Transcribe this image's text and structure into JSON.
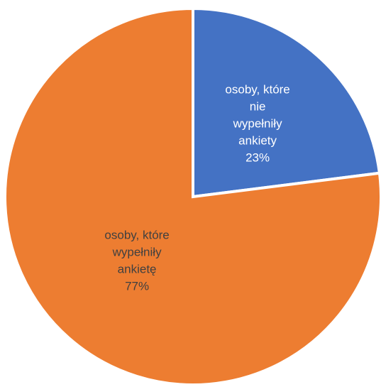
{
  "chart_data": {
    "type": "pie",
    "title": "",
    "legend": "none",
    "start_angle_deg": 0,
    "direction": "clockwise",
    "slices": [
      {
        "label_lines": [
          "osoby, które",
          "nie",
          "wypełniły",
          "ankiety"
        ],
        "value": 23,
        "value_label": "23%",
        "color": "#4472C4",
        "label_color": "#ffffff"
      },
      {
        "label_lines": [
          "osoby, które",
          "wypełniły",
          "ankietę"
        ],
        "value": 77,
        "value_label": "77%",
        "color": "#ED7D31",
        "label_color": "#404040"
      }
    ]
  }
}
